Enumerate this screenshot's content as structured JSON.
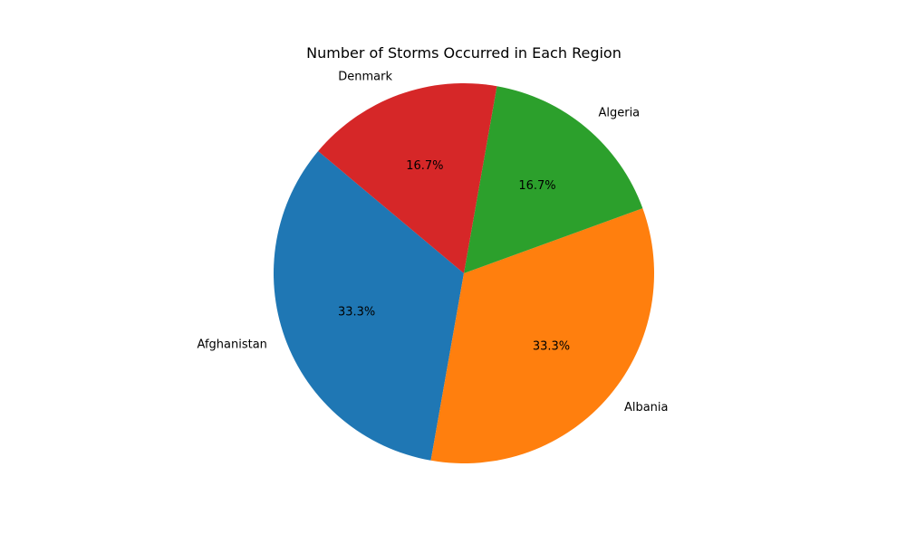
{
  "chart_data": {
    "type": "pie",
    "title": "Number of Storms Occurred in Each Region",
    "start_angle_deg": 140,
    "direction": "counterclockwise",
    "slices": [
      {
        "label": "Afghanistan",
        "value": 2,
        "pct_label": "33.3%",
        "color": "#1f77b4"
      },
      {
        "label": "Albania",
        "value": 2,
        "pct_label": "33.3%",
        "color": "#ff7f0e"
      },
      {
        "label": "Algeria",
        "value": 1,
        "pct_label": "16.7%",
        "color": "#2ca02c"
      },
      {
        "label": "Denmark",
        "value": 1,
        "pct_label": "16.7%",
        "color": "#d62728"
      }
    ]
  }
}
